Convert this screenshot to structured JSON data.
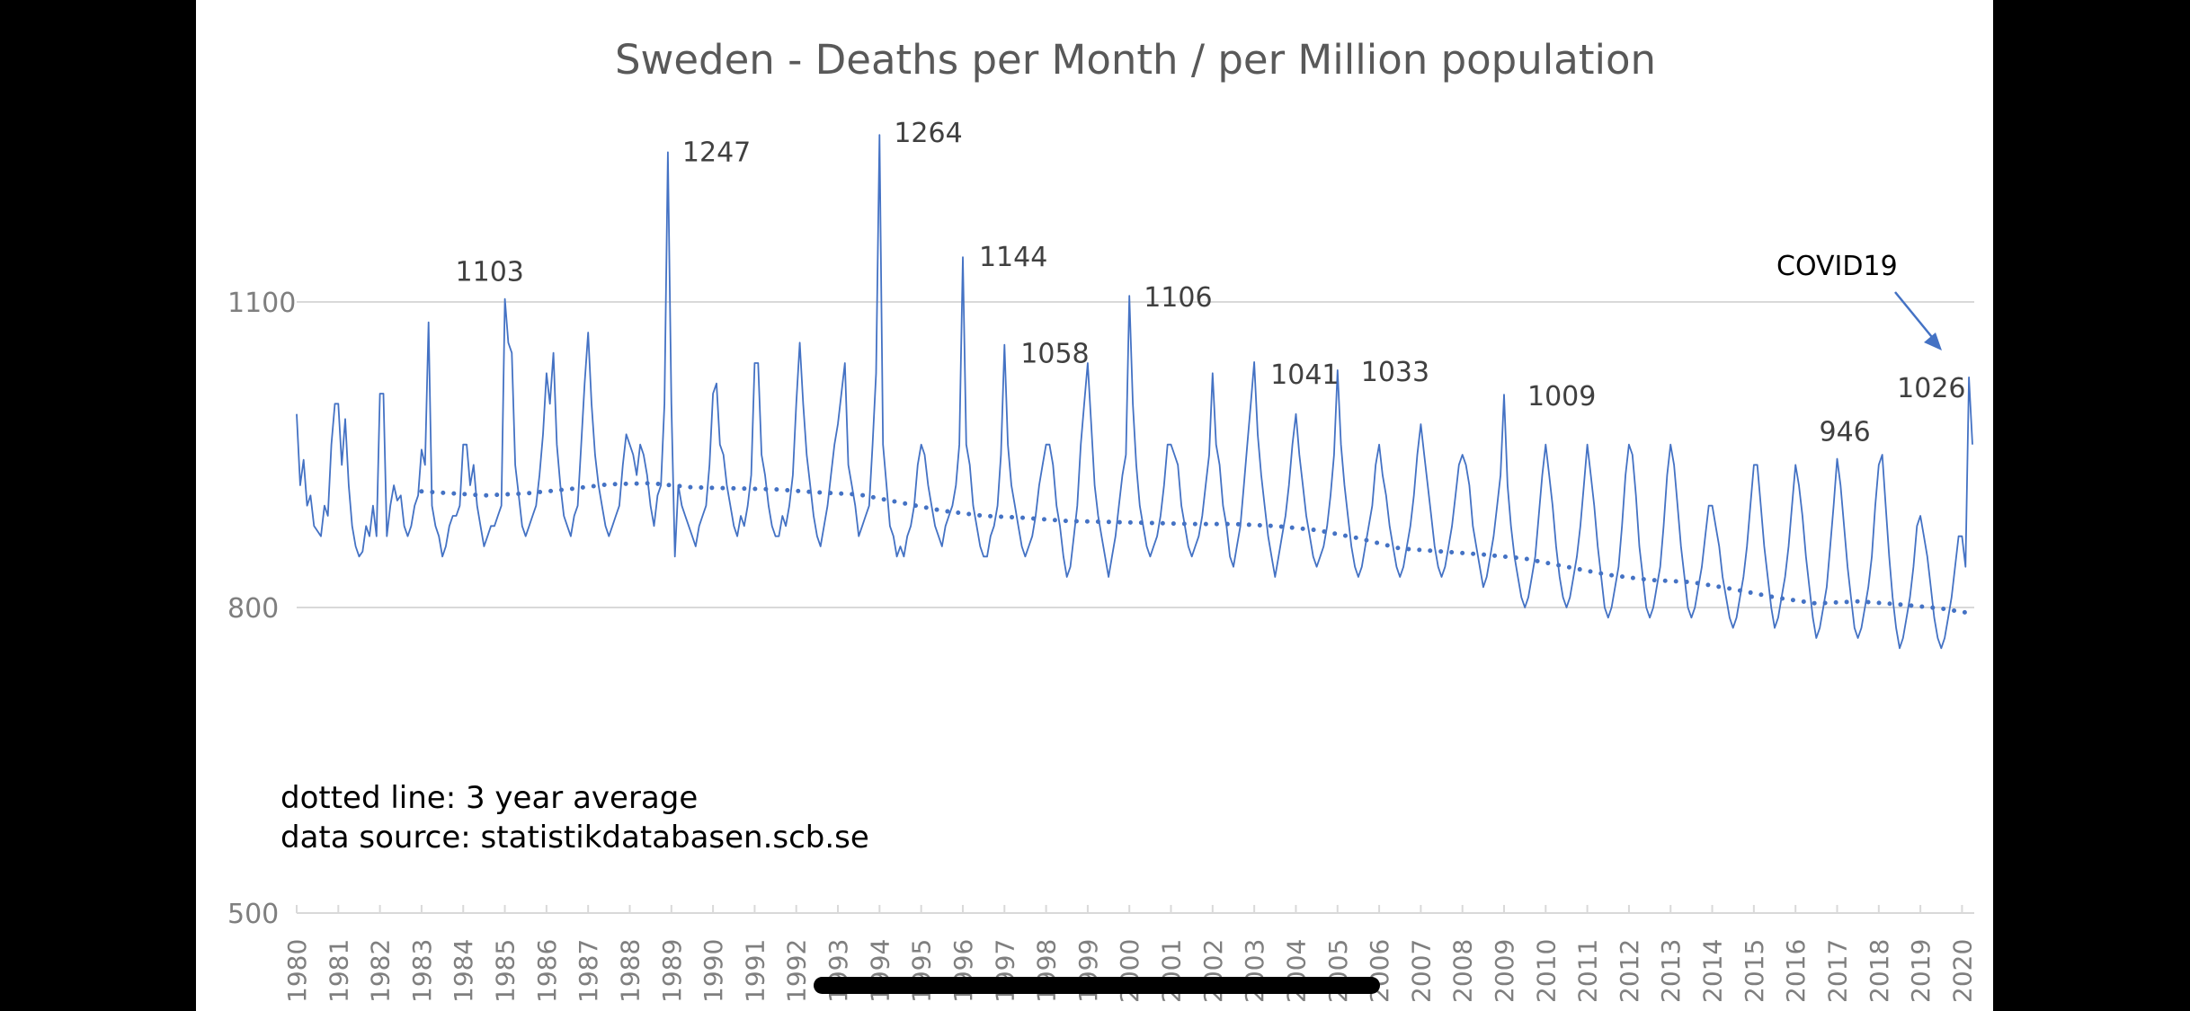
{
  "chart_data": {
    "type": "line",
    "title": "Sweden - Deaths per Month / per Million population",
    "xlabel": "",
    "ylabel": "",
    "ylim": [
      500,
      1300
    ],
    "yticks": [
      500,
      800,
      1100
    ],
    "grid": true,
    "x_start": "1980-01",
    "x_tick_labels": [
      "1980",
      "1981",
      "1982",
      "1983",
      "1984",
      "1985",
      "1986",
      "1987",
      "1988",
      "1989",
      "1990",
      "1991",
      "1992",
      "1993",
      "1994",
      "1995",
      "1996",
      "1997",
      "1998",
      "1999",
      "2000",
      "2001",
      "2002",
      "2003",
      "2004",
      "2005",
      "2006",
      "2007",
      "2008",
      "2009",
      "2010",
      "2011",
      "2012",
      "2013",
      "2014",
      "2015",
      "2016",
      "2017",
      "2018",
      "2019",
      "2020"
    ],
    "series": [
      {
        "name": "Deaths per month per million",
        "style": "solid",
        "color": "#4472C4",
        "monthly_by_year": {
          "1980": [
            990,
            920,
            945,
            900,
            910,
            880,
            875,
            870,
            900,
            890,
            960,
            1000
          ],
          "1981": [
            1000,
            940,
            985,
            920,
            880,
            860,
            850,
            855,
            880,
            870,
            900,
            870
          ],
          "1982": [
            1010,
            1010,
            870,
            900,
            920,
            905,
            910,
            880,
            870,
            880,
            900,
            910
          ],
          "1983": [
            955,
            940,
            1080,
            900,
            880,
            870,
            850,
            860,
            880,
            890,
            890,
            900
          ],
          "1984": [
            960,
            960,
            920,
            940,
            900,
            880,
            860,
            870,
            880,
            880,
            890,
            900
          ],
          "1985": [
            1103,
            1060,
            1050,
            940,
            910,
            880,
            870,
            880,
            890,
            900,
            930,
            970
          ],
          "1986": [
            1030,
            1000,
            1050,
            960,
            920,
            890,
            880,
            870,
            890,
            900,
            960,
            1020
          ],
          "1987": [
            1070,
            1000,
            950,
            920,
            900,
            880,
            870,
            880,
            890,
            900,
            940,
            970
          ],
          "1988": [
            960,
            950,
            930,
            960,
            950,
            930,
            900,
            880,
            910,
            920,
            1000,
            1247
          ],
          "1989": [
            1000,
            850,
            920,
            900,
            890,
            880,
            870,
            860,
            880,
            890,
            900,
            940
          ],
          "1990": [
            1010,
            1020,
            960,
            950,
            920,
            900,
            880,
            870,
            890,
            880,
            900,
            930
          ],
          "1991": [
            1040,
            1040,
            950,
            930,
            900,
            880,
            870,
            870,
            890,
            880,
            900,
            930
          ],
          "1992": [
            1000,
            1060,
            1000,
            950,
            920,
            890,
            870,
            860,
            880,
            900,
            930,
            960
          ],
          "1993": [
            980,
            1010,
            1040,
            940,
            920,
            900,
            870,
            880,
            890,
            900,
            960,
            1030
          ],
          "1994": [
            1264,
            960,
            920,
            880,
            870,
            850,
            860,
            850,
            870,
            880,
            900,
            940
          ],
          "1995": [
            960,
            950,
            920,
            900,
            880,
            870,
            860,
            880,
            890,
            900,
            920,
            960
          ],
          "1996": [
            1144,
            960,
            940,
            900,
            880,
            860,
            850,
            850,
            870,
            880,
            900,
            950
          ],
          "1997": [
            1058,
            960,
            920,
            900,
            880,
            860,
            850,
            860,
            870,
            890,
            920,
            940
          ],
          "1998": [
            960,
            960,
            940,
            900,
            880,
            850,
            830,
            840,
            870,
            900,
            960,
            1000
          ],
          "1999": [
            1040,
            980,
            920,
            890,
            870,
            850,
            830,
            850,
            870,
            900,
            930,
            950
          ],
          "2000": [
            1106,
            1000,
            940,
            900,
            880,
            860,
            850,
            860,
            870,
            890,
            920,
            960
          ],
          "2001": [
            960,
            950,
            940,
            900,
            880,
            860,
            850,
            860,
            870,
            890,
            920,
            950
          ],
          "2002": [
            1030,
            960,
            940,
            900,
            880,
            850,
            840,
            860,
            880,
            920,
            960,
            1000
          ],
          "2003": [
            1041,
            970,
            930,
            900,
            870,
            850,
            830,
            850,
            870,
            890,
            920,
            960
          ],
          "2004": [
            990,
            950,
            920,
            890,
            870,
            850,
            840,
            850,
            860,
            880,
            910,
            950
          ],
          "2005": [
            1033,
            960,
            920,
            890,
            860,
            840,
            830,
            840,
            860,
            880,
            900,
            940
          ],
          "2006": [
            960,
            930,
            910,
            880,
            860,
            840,
            830,
            840,
            860,
            880,
            910,
            950
          ],
          "2007": [
            980,
            950,
            920,
            890,
            860,
            840,
            830,
            840,
            860,
            880,
            910,
            940
          ],
          "2008": [
            950,
            940,
            920,
            880,
            860,
            840,
            820,
            830,
            850,
            870,
            900,
            930
          ],
          "2009": [
            1009,
            920,
            880,
            850,
            830,
            810,
            800,
            810,
            830,
            850,
            890,
            930
          ],
          "2010": [
            960,
            930,
            900,
            860,
            830,
            810,
            800,
            810,
            830,
            850,
            880,
            920
          ],
          "2011": [
            960,
            930,
            900,
            860,
            830,
            800,
            790,
            800,
            820,
            840,
            880,
            930
          ],
          "2012": [
            960,
            950,
            910,
            860,
            830,
            800,
            790,
            800,
            820,
            840,
            880,
            930
          ],
          "2013": [
            960,
            940,
            900,
            860,
            830,
            800,
            790,
            800,
            820,
            840,
            870,
            900
          ],
          "2014": [
            900,
            880,
            860,
            830,
            810,
            790,
            780,
            790,
            810,
            830,
            860,
            900
          ],
          "2015": [
            940,
            940,
            900,
            860,
            830,
            800,
            780,
            790,
            810,
            830,
            860,
            900
          ],
          "2016": [
            940,
            920,
            890,
            850,
            820,
            790,
            770,
            780,
            800,
            820,
            860,
            900
          ],
          "2017": [
            946,
            920,
            880,
            840,
            810,
            780,
            770,
            780,
            800,
            820,
            850,
            900
          ],
          "2018": [
            940,
            950,
            900,
            850,
            810,
            780,
            760,
            770,
            790,
            810,
            840,
            880
          ],
          "2019": [
            890,
            870,
            850,
            820,
            790,
            770,
            760,
            770,
            790,
            810,
            840,
            870
          ],
          "2020": [
            870,
            840,
            1026,
            960
          ]
        }
      },
      {
        "name": "3 year average",
        "style": "dotted",
        "color": "#4472C4",
        "start": "1983-01",
        "monthly_by_year_avg": {
          "1983": 914,
          "1984": 910,
          "1985": 912,
          "1986": 916,
          "1987": 921,
          "1988": 922,
          "1989": 918,
          "1990": 917,
          "1991": 916,
          "1992": 913,
          "1993": 911,
          "1994": 903,
          "1995": 895,
          "1996": 890,
          "1997": 888,
          "1998": 885,
          "1999": 884,
          "2000": 883,
          "2001": 882,
          "2002": 882,
          "2003": 880,
          "2004": 876,
          "2005": 868,
          "2006": 858,
          "2007": 855,
          "2008": 852,
          "2009": 848,
          "2010": 840,
          "2011": 832,
          "2012": 827,
          "2013": 825,
          "2014": 818,
          "2015": 810,
          "2016": 804,
          "2017": 806,
          "2018": 803,
          "2019": 799,
          "2020": 794
        }
      }
    ],
    "annotations": [
      {
        "text": "1103",
        "date": "1985-01",
        "value": 1103
      },
      {
        "text": "1247",
        "date": "1988-12",
        "value": 1247
      },
      {
        "text": "1264",
        "date": "1994-01",
        "value": 1264
      },
      {
        "text": "1144",
        "date": "1996-01",
        "value": 1144
      },
      {
        "text": "1058",
        "date": "1997-01",
        "value": 1058
      },
      {
        "text": "1106",
        "date": "2000-01",
        "value": 1106
      },
      {
        "text": "1041",
        "date": "2003-01",
        "value": 1041
      },
      {
        "text": "1033",
        "date": "2005-01",
        "value": 1033
      },
      {
        "text": "1009",
        "date": "2009-01",
        "value": 1009
      },
      {
        "text": "946",
        "date": "2017-01",
        "value": 946
      },
      {
        "text": "1026",
        "date": "2020-03",
        "value": 1026
      }
    ],
    "callout": {
      "text": "COVID19",
      "points_to": "2020-03"
    },
    "notes": [
      "dotted line: 3 year average",
      "data source: statistikdatabasen.scb.se"
    ]
  }
}
